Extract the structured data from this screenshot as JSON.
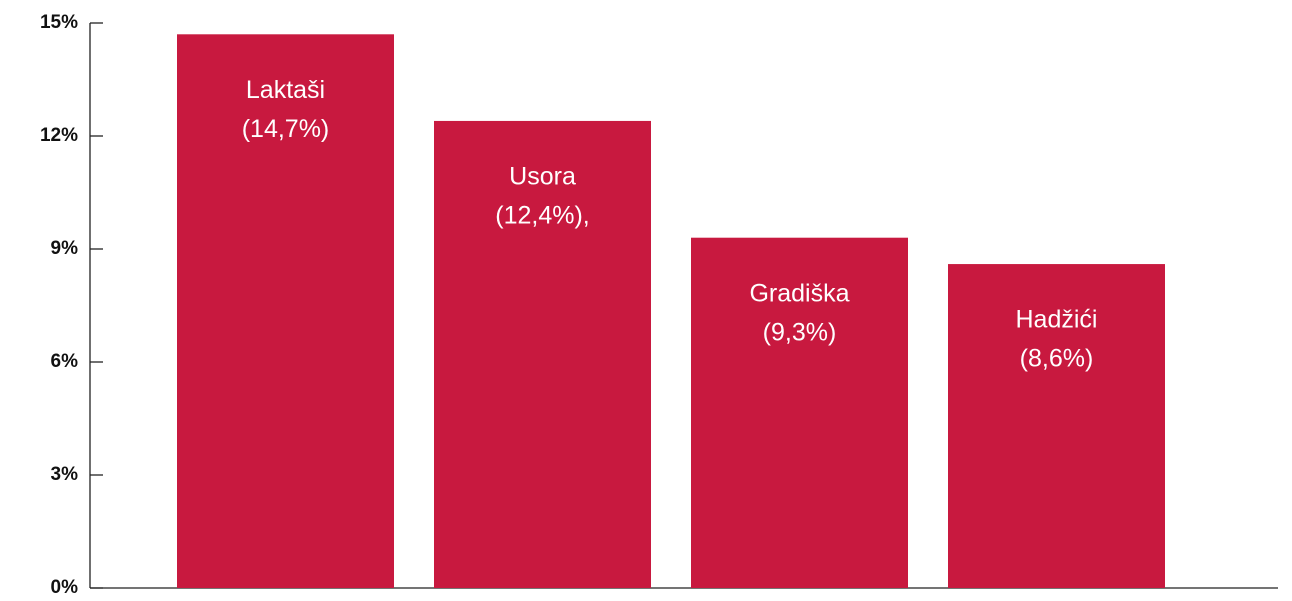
{
  "chart_data": {
    "type": "bar",
    "categories": [
      "Laktaši",
      "Usora",
      "Gradiška",
      "Hadžići"
    ],
    "values": [
      14.7,
      12.4,
      9.3,
      8.6
    ],
    "value_labels": [
      "(14,7%)",
      "(12,4%),",
      "(9,3%)",
      "(8,6%)"
    ],
    "color": "#c8193f",
    "ylim": [
      0,
      15
    ],
    "yticks": [
      {
        "value": 0,
        "label": "0%"
      },
      {
        "value": 3,
        "label": "3%"
      },
      {
        "value": 6,
        "label": "6%"
      },
      {
        "value": 9,
        "label": "9%"
      },
      {
        "value": 12,
        "label": "12%"
      },
      {
        "value": 15,
        "label": "15%"
      }
    ]
  }
}
